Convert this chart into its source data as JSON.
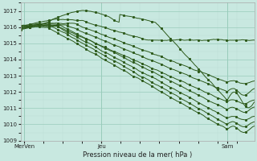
{
  "xlabel": "Pression niveau de la mer( hPa )",
  "ylim": [
    1009,
    1017.5
  ],
  "xlim": [
    0,
    130
  ],
  "yticks": [
    1009,
    1010,
    1011,
    1012,
    1013,
    1014,
    1015,
    1016,
    1017
  ],
  "xtick_positions": [
    2,
    45,
    115
  ],
  "xtick_labels": [
    "MerVen",
    "Jeu",
    "Sam"
  ],
  "bg_color": "#c8e8e0",
  "grid_color_major": "#99ccbb",
  "grid_color_minor": "#bbddd4",
  "line_color": "#2d5a1b"
}
